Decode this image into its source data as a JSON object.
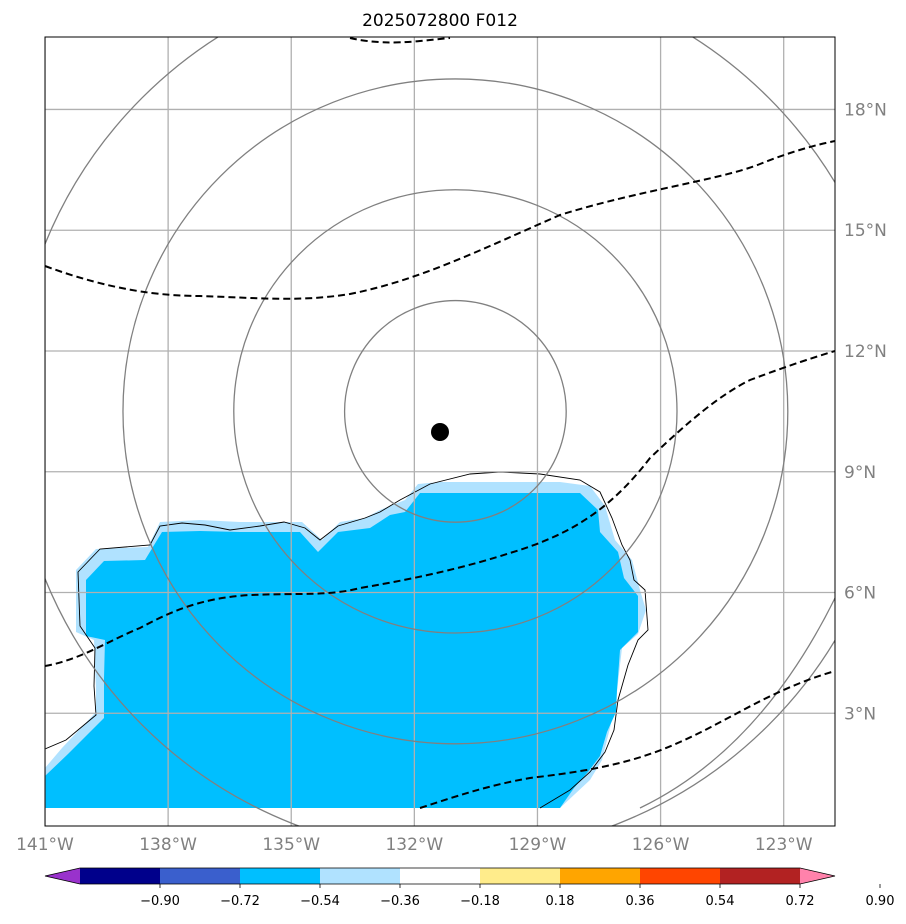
{
  "title": "2025072800 F012",
  "map": {
    "lon_range": [
      -141,
      -121.75
    ],
    "lat_range": [
      0.2,
      19.8
    ],
    "center": {
      "lon": -131.0,
      "lat": 10.5
    },
    "lon_ticks": [
      {
        "value": -141,
        "label": "141°W"
      },
      {
        "value": -138,
        "label": "138°W"
      },
      {
        "value": -135,
        "label": "135°W"
      },
      {
        "value": -132,
        "label": "132°W"
      },
      {
        "value": -129,
        "label": "129°W"
      },
      {
        "value": -126,
        "label": "126°W"
      },
      {
        "value": -123,
        "label": "123°W"
      }
    ],
    "lat_ticks": [
      {
        "value": 3,
        "label": "3°N"
      },
      {
        "value": 6,
        "label": "6°N"
      },
      {
        "value": 9,
        "label": "9°N"
      },
      {
        "value": 12,
        "label": "12°N"
      },
      {
        "value": 15,
        "label": "15°N"
      },
      {
        "value": 18,
        "label": "18°N"
      }
    ],
    "range_rings_deg": [
      2.7,
      5.4,
      8.1,
      10.8
    ],
    "grid": true,
    "fill_color": "#00bfff",
    "fill_edge_color": "#b0e2ff"
  },
  "colorbar": {
    "labels": [
      "−0.90",
      "−0.72",
      "−0.54",
      "−0.36",
      "−0.18",
      "0.18",
      "0.36",
      "0.54",
      "0.72",
      "0.90"
    ],
    "colors": [
      "#9932cc",
      "#00008b",
      "#3a5fcd",
      "#00bfff",
      "#b0e2ff",
      "#ffffff",
      "#ffec8b",
      "#ffa500",
      "#ff4500",
      "#b22222",
      "#ff82ab"
    ]
  }
}
